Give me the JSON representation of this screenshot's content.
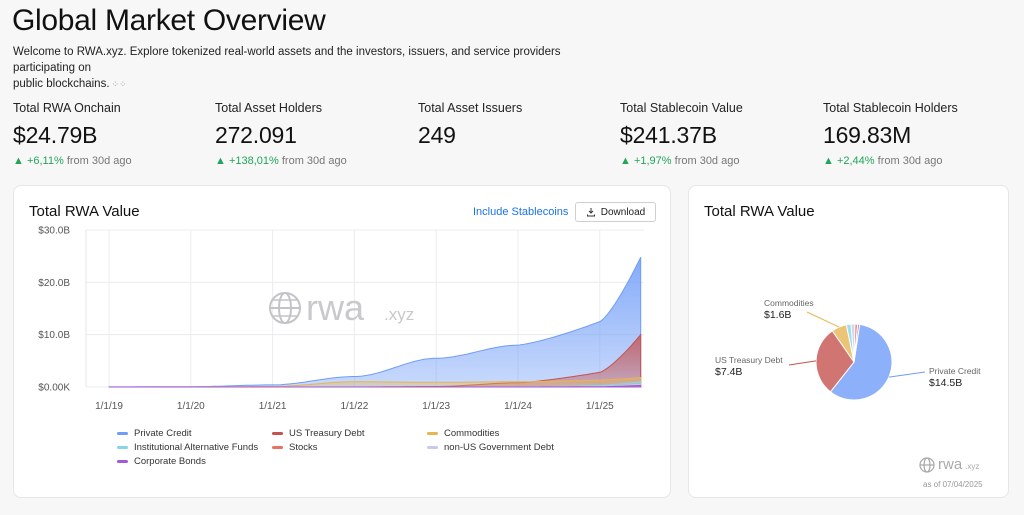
{
  "page": {
    "title": "Global Market Overview",
    "subtitle_line1": "Welcome to RWA.xyz. Explore tokenized real-world assets and the investors, issuers, and service providers participating on",
    "subtitle_line2": "public blockchains."
  },
  "stats": [
    {
      "label": "Total RWA Onchain",
      "value": "$24.79B",
      "change": "+6,11%",
      "suffix": "from 30d ago"
    },
    {
      "label": "Total Asset Holders",
      "value": "272.091",
      "change": "+138,01%",
      "suffix": "from 30d ago"
    },
    {
      "label": "Total Asset Issuers",
      "value": "249",
      "change": "",
      "suffix": ""
    },
    {
      "label": "Total Stablecoin Value",
      "value": "$241.37B",
      "change": "+1,97%",
      "suffix": "from 30d ago"
    },
    {
      "label": "Total Stablecoin Holders",
      "value": "169.83M",
      "change": "+2,44%",
      "suffix": "from 30d ago"
    }
  ],
  "main_chart": {
    "title": "Total RWA Value",
    "include_stablecoins": "Include Stablecoins",
    "download": "Download",
    "watermark": "rwa",
    "watermark_sub": ".xyz"
  },
  "side_chart": {
    "title": "Total RWA Value",
    "watermark": "rwa",
    "watermark_sub": ".xyz",
    "as_of": "as of 07/04/2025"
  },
  "colors": {
    "private_credit": "#6f9cf7",
    "us_treasury": "#c5524f",
    "commodities": "#e7b552",
    "institutional_funds": "#86d6e8",
    "stocks": "#e8735f",
    "non_us_gov": "#c8cbe8",
    "corporate_bonds": "#a35ad6",
    "up": "#22a559",
    "link": "#1a73e8"
  },
  "chart_data": [
    {
      "type": "area",
      "title": "Total RWA Value",
      "x": [
        "1/1/19",
        "1/1/20",
        "1/1/21",
        "1/1/22",
        "1/1/23",
        "1/1/24",
        "1/1/25",
        "7/1/25"
      ],
      "ylabel": "",
      "ylim": [
        0,
        30
      ],
      "yticks": [
        "$0.00K",
        "$10.0B",
        "$20.0B",
        "$30.0B"
      ],
      "series": [
        {
          "name": "Private Credit",
          "values": [
            0.02,
            0.06,
            0.4,
            2.0,
            5.5,
            8.0,
            12.5,
            24.8
          ]
        },
        {
          "name": "US Treasury Debt",
          "values": [
            0.0,
            0.0,
            0.0,
            0.0,
            0.1,
            0.8,
            2.8,
            10.0
          ]
        },
        {
          "name": "Commodities",
          "values": [
            0.0,
            0.02,
            0.1,
            1.0,
            0.9,
            1.0,
            1.3,
            1.8
          ]
        },
        {
          "name": "Institutional Alternative Funds",
          "values": [
            0.0,
            0.0,
            0.0,
            0.0,
            0.0,
            0.0,
            0.3,
            1.0
          ]
        },
        {
          "name": "Stocks",
          "values": [
            0.0,
            0.0,
            0.0,
            0.0,
            0.0,
            0.0,
            0.05,
            0.4
          ]
        },
        {
          "name": "non-US Government Debt",
          "values": [
            0.0,
            0.0,
            0.0,
            0.0,
            0.0,
            0.0,
            0.1,
            0.5
          ]
        },
        {
          "name": "Corporate Bonds",
          "values": [
            0.0,
            0.0,
            0.0,
            0.0,
            0.0,
            0.0,
            0.05,
            0.3
          ]
        }
      ]
    },
    {
      "type": "pie",
      "title": "Total RWA Value",
      "slices": [
        {
          "name": "Private Credit",
          "value": 14.5,
          "label": "$14.5B"
        },
        {
          "name": "US Treasury Debt",
          "value": 7.4,
          "label": "$7.4B"
        },
        {
          "name": "Commodities",
          "value": 1.6,
          "label": "$1.6B"
        },
        {
          "name": "Institutional Alternative Funds",
          "value": 0.5,
          "label": ""
        },
        {
          "name": "non-US Government Debt",
          "value": 0.4,
          "label": ""
        },
        {
          "name": "Stocks",
          "value": 0.3,
          "label": ""
        },
        {
          "name": "Corporate Bonds",
          "value": 0.2,
          "label": ""
        }
      ]
    }
  ]
}
